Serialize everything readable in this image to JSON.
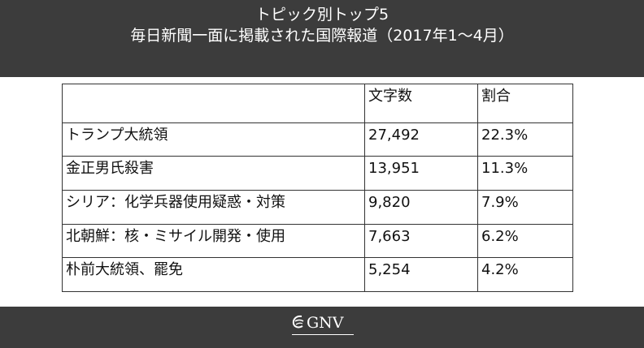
{
  "header": {
    "title_line1": "トピック別トップ5",
    "title_line2": "毎日新聞一面に掲載された国際報道（2017年1〜4月）"
  },
  "table": {
    "columns": [
      "",
      "文字数",
      "割合"
    ],
    "rows": [
      {
        "topic": "トランプ大統領",
        "chars": "27,492",
        "share": "22.3%"
      },
      {
        "topic": "金正男氏殺害",
        "chars": "13,951",
        "share": "11.3%"
      },
      {
        "topic": "シリア：化学兵器使用疑惑・対策",
        "chars": "9,820",
        "share": "7.9%"
      },
      {
        "topic": "北朝鮮：核・ミサイル開発・使用",
        "chars": "7,663",
        "share": "6.2%"
      },
      {
        "topic": "朴前大統領、罷免",
        "chars": "5,254",
        "share": "4.2%"
      }
    ]
  },
  "footer": {
    "logo_text": "GNV",
    "logo_icon": "globe-swoosh-icon"
  },
  "colors": {
    "header_bg": "#3c3c3c",
    "header_text": "#ffffff",
    "table_border": "#333333"
  }
}
